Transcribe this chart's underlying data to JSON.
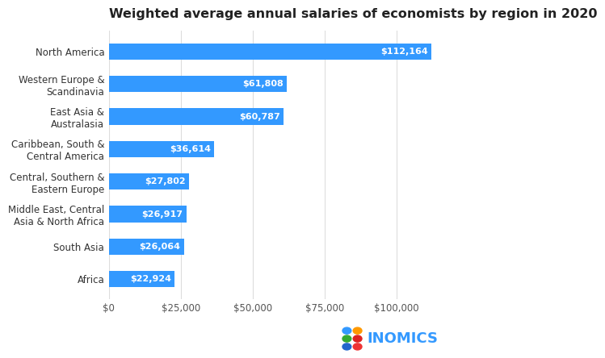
{
  "title": "Weighted average annual salaries of economists by region in 2020",
  "categories": [
    "North America",
    "Western Europe &\nScandinavia",
    "East Asia &\nAustralasia",
    "Caribbean, South &\nCentral America",
    "Central, Southern &\nEastern Europe",
    "Middle East, Central\nAsia & North Africa",
    "South Asia",
    "Africa"
  ],
  "values": [
    112164,
    61808,
    60787,
    36614,
    27802,
    26917,
    26064,
    22924
  ],
  "labels": [
    "$112,164",
    "$61,808",
    "$60,787",
    "$36,614",
    "$27,802",
    "$26,917",
    "$26,064",
    "$22,924"
  ],
  "bar_color": "#3399ff",
  "background_color": "#ffffff",
  "title_fontsize": 11.5,
  "label_fontsize": 8,
  "tick_fontsize": 8.5,
  "cat_fontsize": 8.5,
  "xlim": [
    0,
    125000
  ],
  "xticks": [
    0,
    25000,
    50000,
    75000,
    100000
  ],
  "xticklabels": [
    "$0",
    "$25,000",
    "$50,000",
    "$75,000",
    "$100,000"
  ],
  "inomics_text": "INOMICS",
  "inomics_text_color": "#3399ff",
  "dot_color_grid": [
    [
      "#3399ff",
      "#ff9900"
    ],
    [
      "#33aa33",
      "#dd2222"
    ],
    [
      "#2266cc",
      "#ee3333"
    ]
  ]
}
